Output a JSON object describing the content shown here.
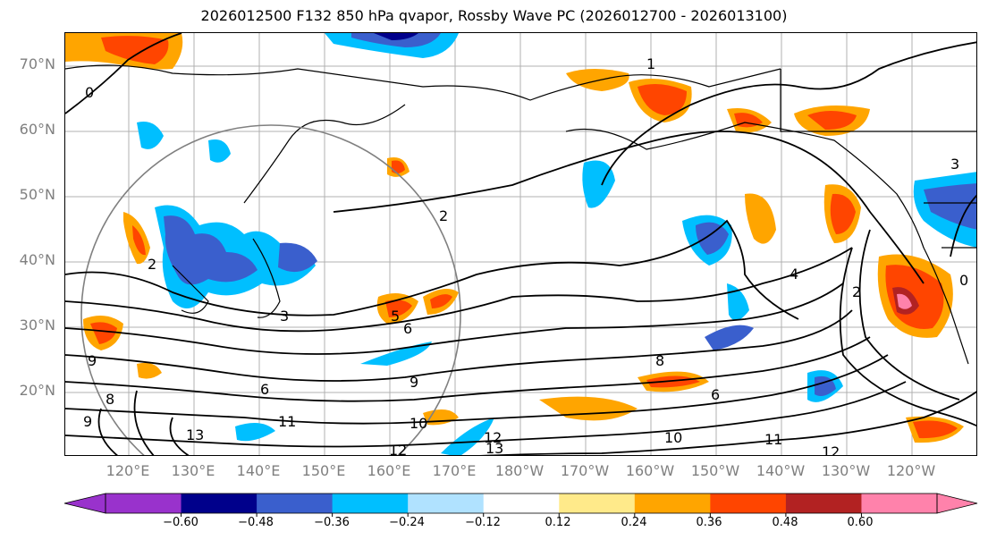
{
  "title": "2026012500 F132 850 hPa qvapor, Rossby Wave PC (2026012700 - 2026013100)",
  "lat_labels": [
    "70°N",
    "60°N",
    "50°N",
    "40°N",
    "30°N",
    "20°N"
  ],
  "lon_labels": [
    "120°E",
    "130°E",
    "140°E",
    "150°E",
    "160°E",
    "170°E",
    "180°W",
    "170°W",
    "160°W",
    "150°W",
    "140°W",
    "130°W",
    "120°W"
  ],
  "colorbar": {
    "colors": [
      "#9932cc",
      "#00008b",
      "#3a5fcd",
      "#00bfff",
      "#b0e2ff",
      "#ffffff",
      "#ffea8a",
      "#ffa500",
      "#ff4500",
      "#b22222",
      "#ff82ab"
    ],
    "tick_labels": [
      "−0.60",
      "−0.48",
      "−0.36",
      "−0.24",
      "−0.12",
      "0.12",
      "0.24",
      "0.36",
      "0.48",
      "0.60"
    ]
  },
  "contour_labels": [
    "0",
    "1",
    "2",
    "3",
    "5",
    "6",
    "9",
    "6",
    "9",
    "10",
    "11",
    "12",
    "13",
    "8",
    "9",
    "10",
    "11",
    "12",
    "2",
    "4",
    "6",
    "8",
    "12",
    "13",
    "3",
    "2",
    "0"
  ]
}
